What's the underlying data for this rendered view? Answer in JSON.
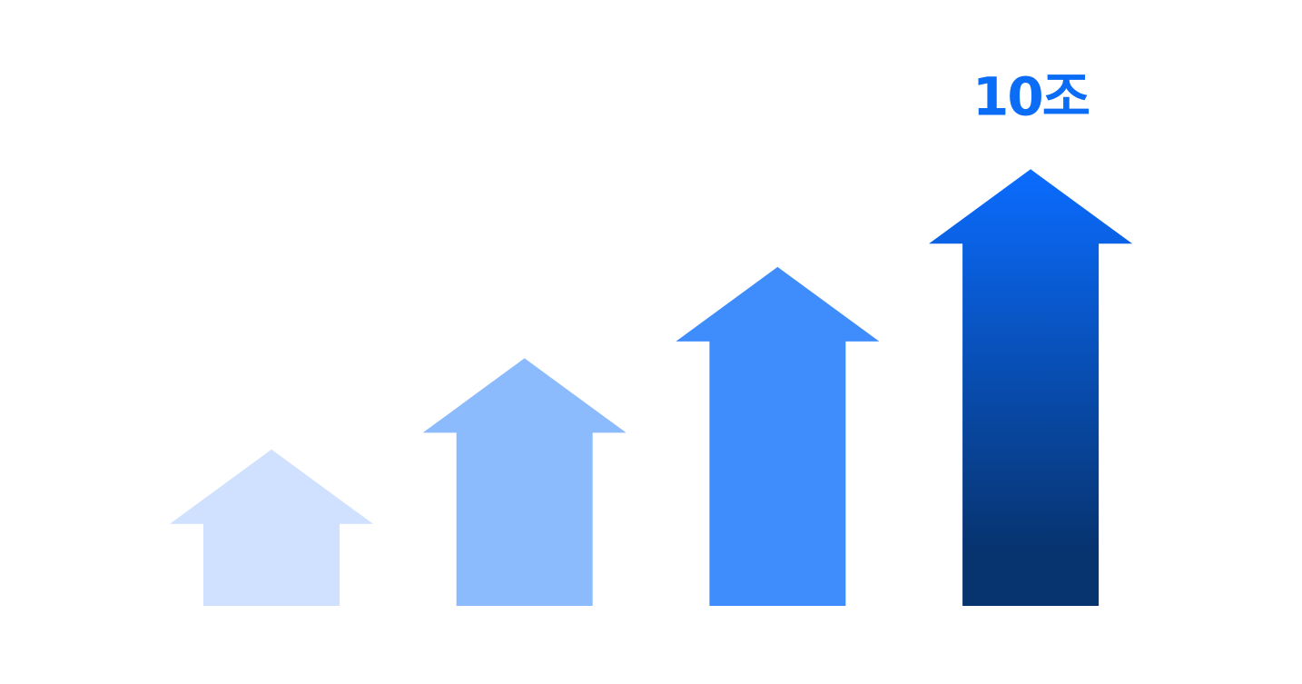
{
  "chart_data": {
    "type": "bar",
    "style": "upward-arrows",
    "categories": [
      "",
      "",
      "",
      ""
    ],
    "values": [
      2.4,
      3.8,
      5.2,
      6.7
    ],
    "ylim": [
      0,
      8
    ],
    "grid": false,
    "legend": "none",
    "annotations": [
      {
        "bar_index": 3,
        "text": "10조"
      }
    ],
    "colors": [
      "#cfe1fe",
      "#8bbbfd",
      "#3f8dfd",
      "#0a6cff"
    ],
    "gradient_end_color": "#07336e",
    "label_color": "#0b6cf5"
  }
}
